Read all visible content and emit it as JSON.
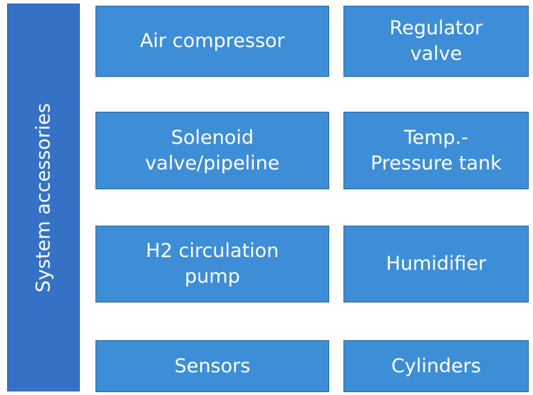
{
  "sidebar": {
    "label": "System accessories"
  },
  "nodes": [
    {
      "lines": [
        "Air compressor"
      ]
    },
    {
      "lines": [
        "Regulator",
        "valve"
      ]
    },
    {
      "lines": [
        "Solenoid",
        "valve/pipeline"
      ]
    },
    {
      "lines": [
        "Temp.-",
        "Pressure tank"
      ]
    },
    {
      "lines": [
        "H2 circulation",
        "pump"
      ]
    },
    {
      "lines": [
        "Humidifier"
      ]
    },
    {
      "lines": [
        "Sensors"
      ]
    },
    {
      "lines": [
        "Cylinders"
      ]
    }
  ]
}
